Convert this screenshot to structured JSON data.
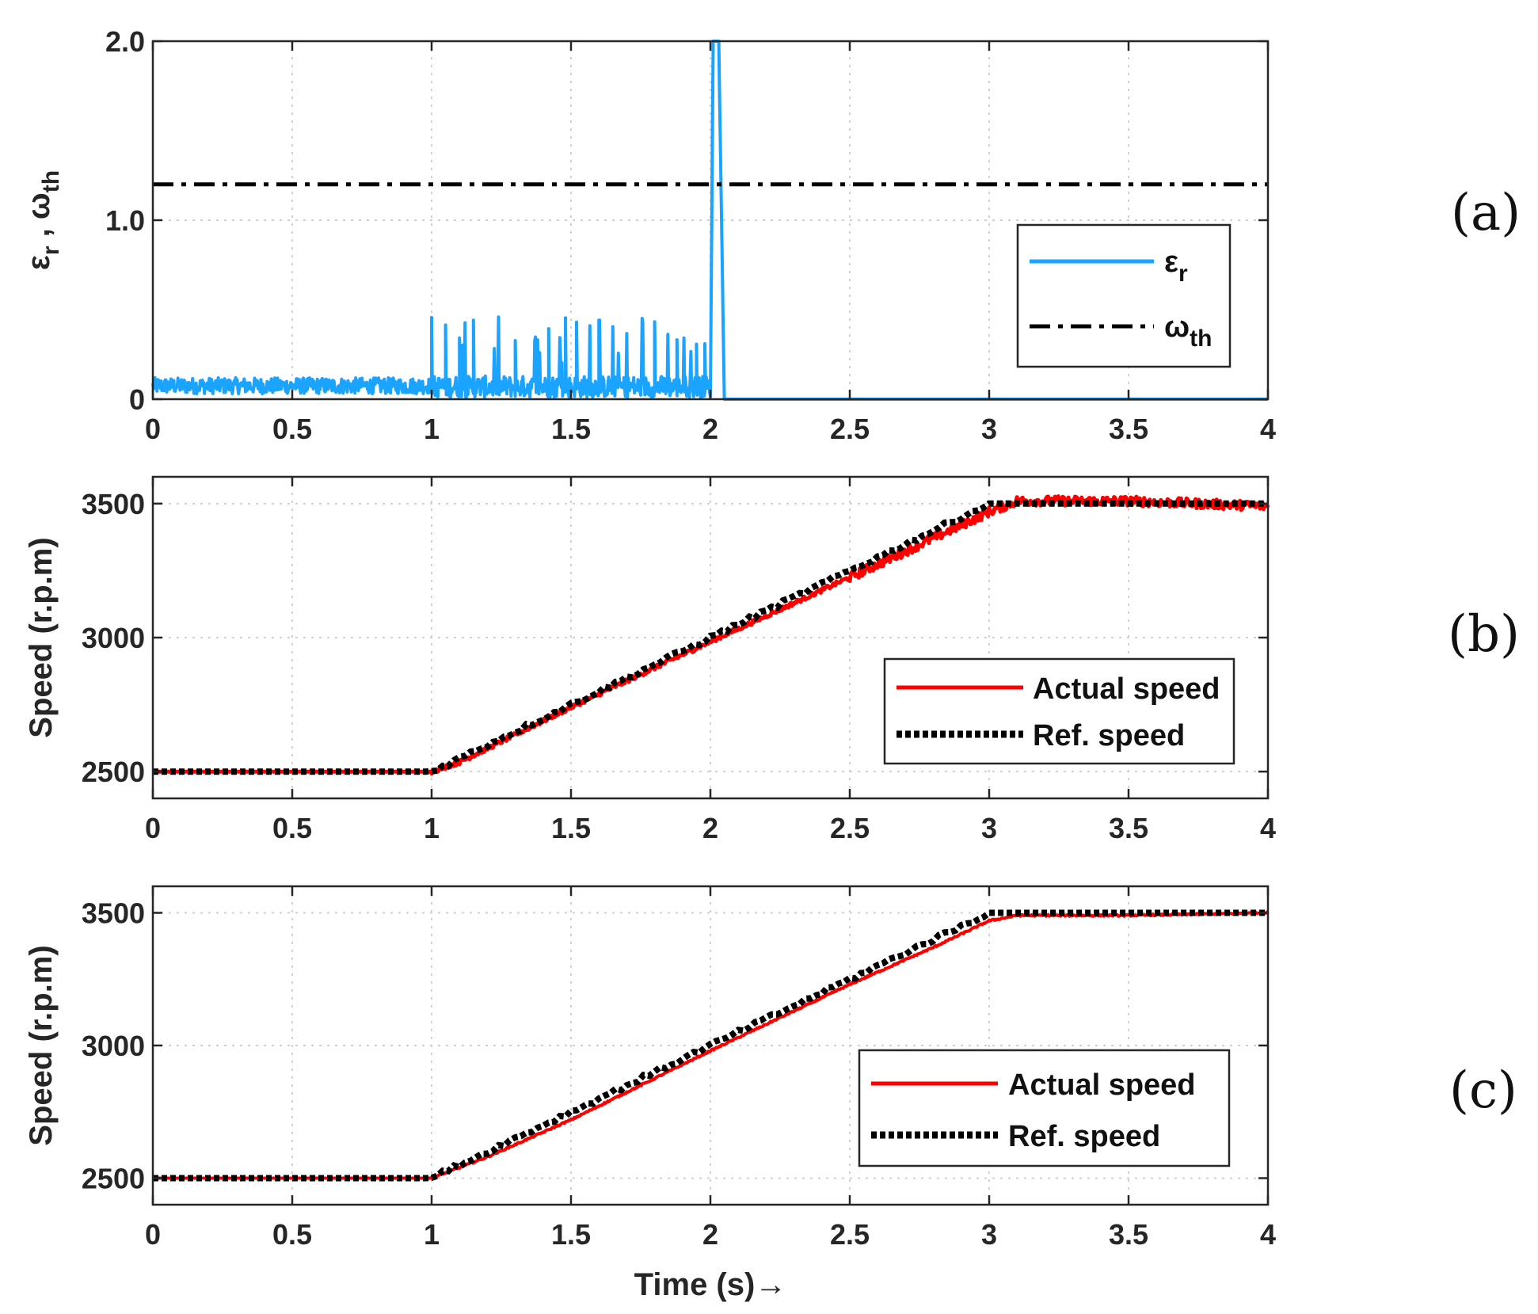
{
  "figure": {
    "xlabel": "Time (s)→",
    "colors": {
      "actual": "#ff0000",
      "ref": "#000000",
      "error": "#1aa3ff",
      "threshold": "#000000",
      "axis": "#262626"
    }
  },
  "chart_data": [
    {
      "panel": "(a)",
      "type": "line",
      "ylabel": "εr , ωth",
      "ylabel_parts": {
        "eps": "ε",
        "r": "r",
        "comma": " , ",
        "omega": "ω",
        "th": "th"
      },
      "xlim": [
        0,
        4
      ],
      "ylim": [
        0,
        2
      ],
      "xticks": [
        "0",
        "0.5",
        "1",
        "1.5",
        "2",
        "2.5",
        "3",
        "3.5",
        "4"
      ],
      "xtick_values": [
        0,
        0.5,
        1,
        1.5,
        2,
        2.5,
        3,
        3.5,
        4
      ],
      "yticks": [
        "0",
        "1.0",
        "2.0"
      ],
      "ytick_values": [
        0,
        1,
        2
      ],
      "legend_position": "right-middle",
      "series": [
        {
          "name": "εr",
          "name_parts": {
            "sym": "ε",
            "sub": "r"
          },
          "style": "solid",
          "description": "Residual around 0.03-0.12 for t<1, bursts up to ~0.47 for 1<t<2, spike to 2.0 at t≈2.01, then 0",
          "x": [
            0,
            0.1,
            0.2,
            0.3,
            0.4,
            0.5,
            0.6,
            0.7,
            0.8,
            0.9,
            1.0,
            1.01,
            1.02,
            1.1,
            1.2,
            1.3,
            1.4,
            1.5,
            1.6,
            1.7,
            1.8,
            1.9,
            1.98,
            2.0,
            2.01,
            2.03,
            2.05,
            4.0
          ],
          "y": [
            0.08,
            0.08,
            0.08,
            0.08,
            0.08,
            0.08,
            0.08,
            0.08,
            0.08,
            0.08,
            0.08,
            0.4,
            0.05,
            0.2,
            0.2,
            0.2,
            0.2,
            0.2,
            0.2,
            0.2,
            0.2,
            0.2,
            0.4,
            0.05,
            2.0,
            2.0,
            0,
            0
          ]
        },
        {
          "name": "ωth",
          "name_parts": {
            "sym": "ω",
            "sub": "th"
          },
          "style": "dash-dot",
          "x": [
            0,
            4
          ],
          "y": [
            1.2,
            1.2
          ]
        }
      ]
    },
    {
      "panel": "(b)",
      "type": "line",
      "ylabel": "Speed (r.p.m)",
      "xlim": [
        0,
        4
      ],
      "ylim": [
        2400,
        3600
      ],
      "xticks": [
        "0",
        "0.5",
        "1",
        "1.5",
        "2",
        "2.5",
        "3",
        "3.5",
        "4"
      ],
      "xtick_values": [
        0,
        0.5,
        1,
        1.5,
        2,
        2.5,
        3,
        3.5,
        4
      ],
      "yticks": [
        "2500",
        "3000",
        "3500"
      ],
      "ytick_values": [
        2500,
        3000,
        3500
      ],
      "legend_position": "bottom-right",
      "series": [
        {
          "name": "Actual speed",
          "style": "solid",
          "x": [
            0,
            1.0,
            1.1,
            1.5,
            2.0,
            2.5,
            2.9,
            3.0,
            3.1,
            3.5,
            4.0
          ],
          "y": [
            2500,
            2500,
            2535,
            2740,
            2985,
            3225,
            3420,
            3470,
            3510,
            3510,
            3490
          ]
        },
        {
          "name": "Ref. speed",
          "style": "dotted",
          "x": [
            0,
            1.0,
            3.0,
            4.0
          ],
          "y": [
            2500,
            2500,
            3500,
            3500
          ]
        }
      ]
    },
    {
      "panel": "(c)",
      "type": "line",
      "ylabel": "Speed (r.p.m)",
      "xlim": [
        0,
        4
      ],
      "ylim": [
        2400,
        3600
      ],
      "xticks": [
        "0",
        "0.5",
        "1",
        "1.5",
        "2",
        "2.5",
        "3",
        "3.5",
        "4"
      ],
      "xtick_values": [
        0,
        0.5,
        1,
        1.5,
        2,
        2.5,
        3,
        3.5,
        4
      ],
      "yticks": [
        "2500",
        "3000",
        "3500"
      ],
      "ytick_values": [
        2500,
        3000,
        3500
      ],
      "legend_position": "bottom-right",
      "series": [
        {
          "name": "Actual speed",
          "style": "solid",
          "x": [
            0,
            1.0,
            1.2,
            1.5,
            2.0,
            2.5,
            2.8,
            3.0,
            3.1,
            3.5,
            4.0
          ],
          "y": [
            2500,
            2500,
            2580,
            2720,
            2980,
            3230,
            3370,
            3470,
            3490,
            3490,
            3500
          ]
        },
        {
          "name": "Ref. speed",
          "style": "dotted",
          "x": [
            0,
            1.0,
            3.0,
            4.0
          ],
          "y": [
            2500,
            2500,
            3500,
            3500
          ]
        }
      ]
    }
  ]
}
